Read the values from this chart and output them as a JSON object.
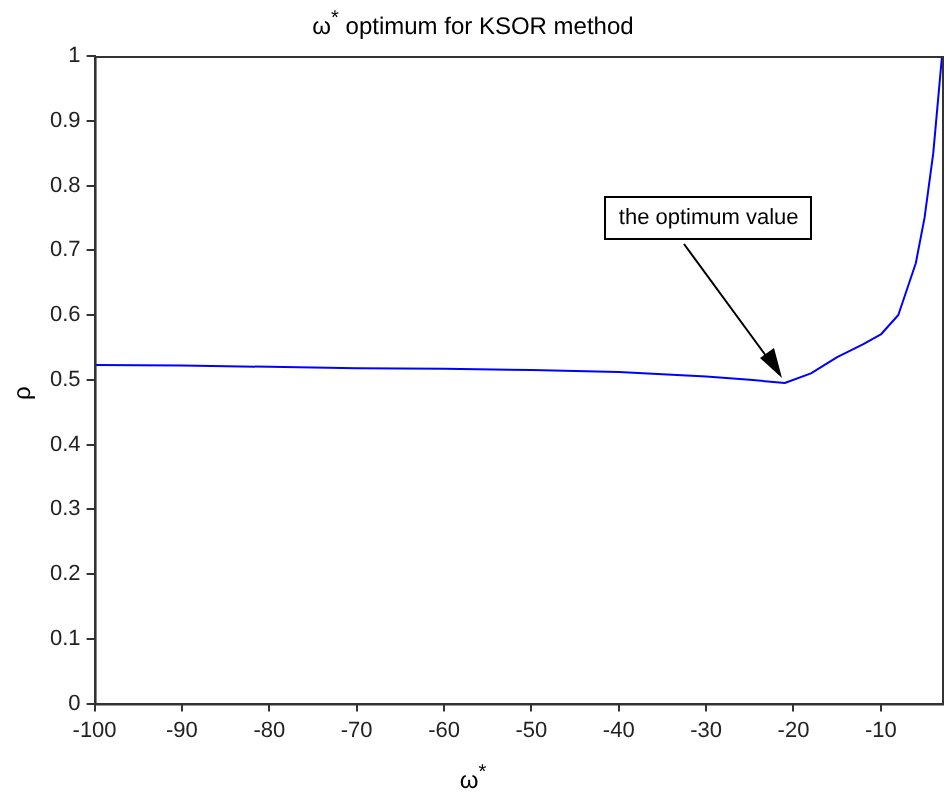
{
  "chart_data": {
    "type": "line",
    "title": "ω$^{*}$ optimum for KSOR method",
    "xlabel": "ω$^{*}$",
    "ylabel": "ρ",
    "x": [
      -100,
      -90,
      -80,
      -70,
      -60,
      -50,
      -40,
      -30,
      -25,
      -21,
      -18,
      -15,
      -12,
      -10,
      -8,
      -6,
      -5,
      -4,
      -3.4,
      -3
    ],
    "series": [
      {
        "color": "#0000ff",
        "values": [
          0.523,
          0.522,
          0.52,
          0.518,
          0.517,
          0.515,
          0.512,
          0.505,
          0.5,
          0.495,
          0.51,
          0.535,
          0.555,
          0.57,
          0.6,
          0.68,
          0.75,
          0.85,
          0.94,
          1
        ]
      }
    ],
    "xlim": [
      -100,
      -3
    ],
    "xticks": [
      -100,
      -90,
      -80,
      -70,
      -60,
      -50,
      -40,
      -30,
      -20,
      -10
    ],
    "ylim": [
      0,
      1
    ],
    "yticks": [
      0,
      0.1,
      0.2,
      0.3,
      0.4,
      0.5,
      0.6,
      0.7,
      0.8,
      0.9,
      1
    ],
    "grid": false,
    "legend": false,
    "marker": "none",
    "line_style": "solid",
    "annotations": [
      "the optimum value"
    ]
  }
}
